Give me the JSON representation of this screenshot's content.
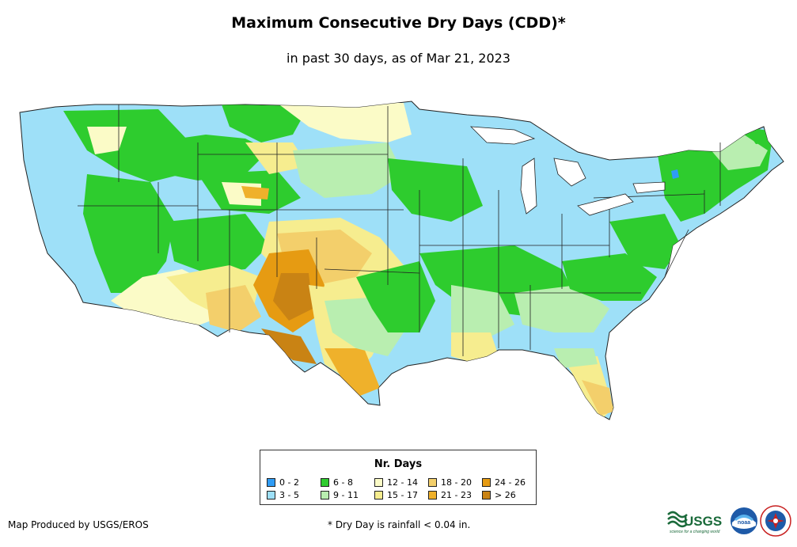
{
  "header": {
    "title": "Maximum Consecutive Dry Days (CDD)*",
    "subtitle": "in past 30 days, as of Mar 21, 2023"
  },
  "map": {
    "region": "Contiguous United States"
  },
  "legend": {
    "title": "Nr. Days",
    "items": [
      {
        "label": "0 - 2",
        "color": "#2f9cf5"
      },
      {
        "label": "3 - 5",
        "color": "#9ee0f8"
      },
      {
        "label": "6 - 8",
        "color": "#2ecc2e"
      },
      {
        "label": "9 - 11",
        "color": "#b9eeb0"
      },
      {
        "label": "12 - 14",
        "color": "#fbfbc7"
      },
      {
        "label": "15 - 17",
        "color": "#f6ed8f"
      },
      {
        "label": "18 - 20",
        "color": "#f3cf6b"
      },
      {
        "label": "21 - 23",
        "color": "#efb12b"
      },
      {
        "label": "24 - 26",
        "color": "#e69b12"
      },
      {
        "label": "> 26",
        "color": "#c98314"
      }
    ]
  },
  "footer": {
    "credit": "Map Produced by USGS/EROS",
    "note": "* Dry Day is rainfall < 0.04 in."
  },
  "logos": {
    "usgs_text": "USGS",
    "usgs_tagline": "science for a changing world",
    "noaa_text": "noaa"
  }
}
